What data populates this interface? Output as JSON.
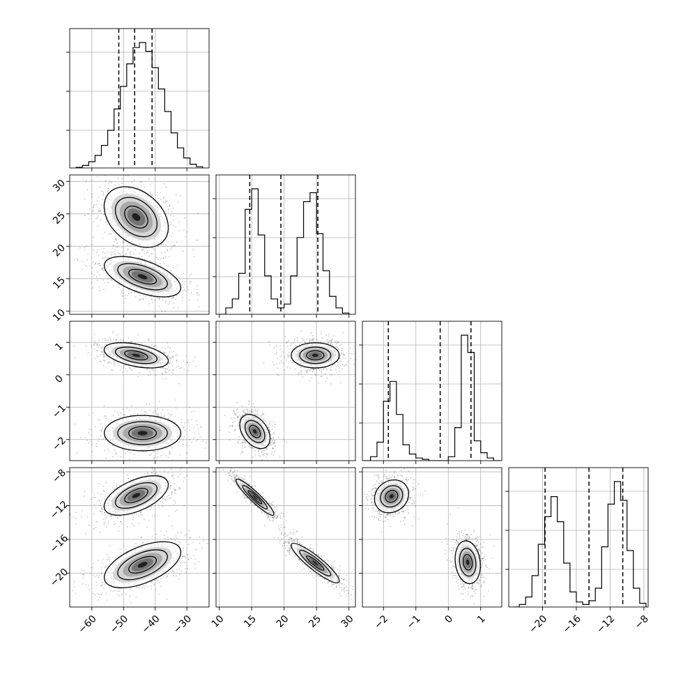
{
  "chart_data": {
    "type": "corner",
    "title": "",
    "parameters": [
      {
        "name": "",
        "range": [
          -67,
          -23
        ],
        "ticks": [
          -60,
          -50,
          -40,
          -30
        ],
        "tick_labels": [
          "−60",
          "−50",
          "−40",
          "−30"
        ],
        "quantile_lines": [
          -51.5,
          -46.5,
          -41.0
        ],
        "histogram": {
          "edges": [
            -65,
            -63,
            -61,
            -59,
            -57,
            -55,
            -53,
            -51,
            -49,
            -47,
            -45,
            -43,
            -41,
            -39,
            -37,
            -35,
            -33,
            -31,
            -29,
            -27,
            -25
          ],
          "counts": [
            0.005,
            0.02,
            0.05,
            0.1,
            0.18,
            0.3,
            0.47,
            0.65,
            0.83,
            0.96,
            1.0,
            0.93,
            0.8,
            0.63,
            0.45,
            0.28,
            0.16,
            0.08,
            0.03,
            0.01
          ]
        }
      },
      {
        "name": "",
        "range": [
          9.5,
          31
        ],
        "ticks": [
          10,
          15,
          20,
          25,
          30
        ],
        "tick_labels": [
          "10",
          "15",
          "20",
          "25",
          "30"
        ],
        "quantile_lines": [
          14.7,
          19.5,
          25.2
        ],
        "histogram": {
          "edges": [
            10,
            11,
            12,
            13,
            14,
            15,
            16,
            17,
            18,
            19,
            20,
            21,
            22,
            23,
            24,
            25,
            26,
            27,
            28,
            29,
            30
          ],
          "counts": [
            0.0,
            0.05,
            0.12,
            0.32,
            0.82,
            0.98,
            0.62,
            0.3,
            0.12,
            0.05,
            0.08,
            0.3,
            0.6,
            0.88,
            0.95,
            0.63,
            0.34,
            0.14,
            0.05,
            0.01
          ]
        }
      },
      {
        "name": "",
        "range": [
          -2.65,
          1.65
        ],
        "ticks": [
          -2,
          -1,
          0,
          1
        ],
        "tick_labels": [
          "−2",
          "−1",
          "0",
          "1"
        ],
        "quantile_lines": [
          -1.85,
          -0.25,
          0.7
        ],
        "histogram": {
          "edges": [
            -2.6,
            -2.4,
            -2.2,
            -2.0,
            -1.8,
            -1.6,
            -1.4,
            -1.2,
            -1.0,
            -0.8,
            -0.6,
            -0.4,
            -0.2,
            0.0,
            0.2,
            0.4,
            0.6,
            0.8,
            1.0,
            1.2,
            1.4,
            1.6
          ],
          "counts": [
            0.0,
            0.03,
            0.14,
            0.45,
            0.6,
            0.35,
            0.12,
            0.05,
            0.02,
            0.01,
            0.0,
            0.0,
            0.0,
            0.03,
            0.25,
            0.95,
            0.82,
            0.15,
            0.06,
            0.02,
            0.0
          ]
        }
      },
      {
        "name": "",
        "range": [
          -24,
          -7.5
        ],
        "ticks": [
          -20,
          -16,
          -12,
          -8
        ],
        "tick_labels": [
          "−20",
          "−16",
          "−12",
          "−8"
        ],
        "quantile_lines": [
          -19.7,
          -14.5,
          -10.5
        ],
        "histogram": {
          "edges": [
            -23.5,
            -22.75,
            -22,
            -21.25,
            -20.5,
            -19.75,
            -19,
            -18.25,
            -17.5,
            -16.75,
            -16,
            -15.25,
            -14.5,
            -13.75,
            -13,
            -12.25,
            -11.5,
            -10.75,
            -10,
            -9.25,
            -8.5,
            -7.75
          ],
          "counts": [
            0.0,
            0.02,
            0.08,
            0.25,
            0.5,
            0.72,
            0.88,
            0.68,
            0.35,
            0.12,
            0.04,
            0.02,
            0.05,
            0.15,
            0.48,
            0.82,
            1.0,
            0.85,
            0.45,
            0.15,
            0.03
          ]
        }
      }
    ],
    "pairs": [
      {
        "row": 1,
        "col": 0,
        "modes": [
          {
            "mx": -46,
            "my": 24.5,
            "sx": 5.2,
            "sy": 2.4,
            "rho": -0.35,
            "w": 1
          },
          {
            "mx": -44,
            "my": 15.3,
            "sx": 6.2,
            "sy": 1.6,
            "rho": -0.55,
            "w": 1
          }
        ]
      },
      {
        "row": 2,
        "col": 0,
        "modes": [
          {
            "mx": -46,
            "my": 0.6,
            "sx": 5.2,
            "sy": 0.2,
            "rho": -0.45,
            "w": 1
          },
          {
            "mx": -44,
            "my": -1.8,
            "sx": 6.2,
            "sy": 0.28,
            "rho": 0.0,
            "w": 1
          }
        ]
      },
      {
        "row": 2,
        "col": 1,
        "modes": [
          {
            "mx": 24.8,
            "my": 0.6,
            "sx": 1.9,
            "sy": 0.2,
            "rho": 0.0,
            "w": 1
          },
          {
            "mx": 15.5,
            "my": -1.75,
            "sx": 1.2,
            "sy": 0.27,
            "rho": -0.4,
            "w": 1
          }
        ]
      },
      {
        "row": 3,
        "col": 0,
        "modes": [
          {
            "mx": -46,
            "my": -10.8,
            "sx": 5.2,
            "sy": 1.2,
            "rho": 0.55,
            "w": 1
          },
          {
            "mx": -44,
            "my": -19.0,
            "sx": 6.2,
            "sy": 1.4,
            "rho": 0.55,
            "w": 1
          }
        ]
      },
      {
        "row": 3,
        "col": 1,
        "modes": [
          {
            "mx": 15.5,
            "my": -11.0,
            "sx": 1.5,
            "sy": 1.1,
            "rho": -0.93,
            "w": 1
          },
          {
            "mx": 24.8,
            "my": -18.8,
            "sx": 1.9,
            "sy": 1.2,
            "rho": -0.9,
            "w": 1
          }
        ]
      },
      {
        "row": 3,
        "col": 2,
        "modes": [
          {
            "mx": -1.75,
            "my": -10.9,
            "sx": 0.27,
            "sy": 1.0,
            "rho": 0.15,
            "w": 1
          },
          {
            "mx": 0.6,
            "my": -18.7,
            "sx": 0.2,
            "sy": 1.3,
            "rho": -0.15,
            "w": 1
          }
        ]
      }
    ],
    "contour_levels": [
      0.15,
      0.45,
      0.78
    ],
    "grid": true,
    "colors": {
      "axes": "#000000",
      "grid": "#b0b0b0",
      "points": "#000000",
      "hist": "#000000"
    }
  }
}
